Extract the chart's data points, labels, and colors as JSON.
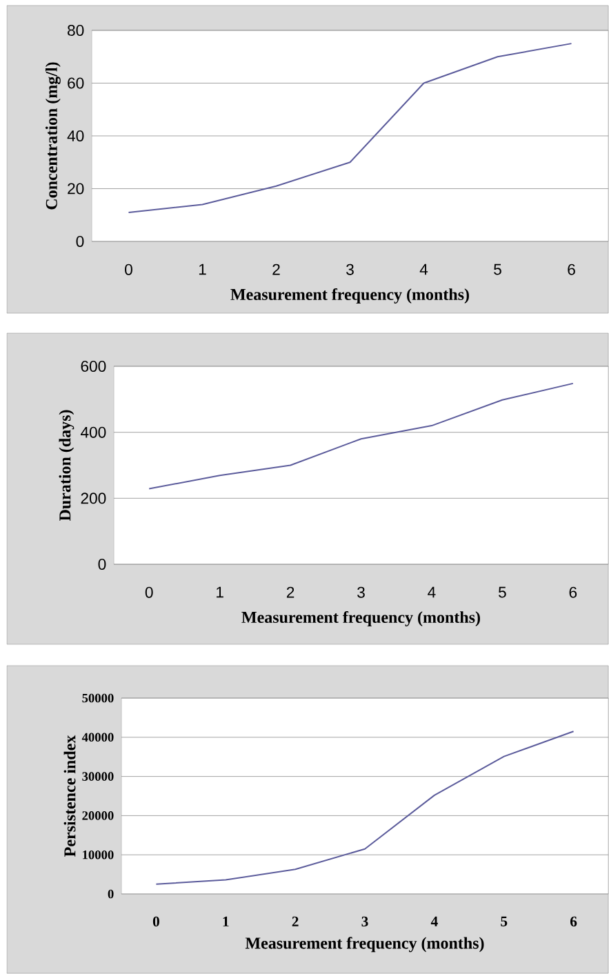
{
  "chart_data": [
    {
      "type": "line",
      "xlabel": "Measurement frequency (months)",
      "ylabel": "Concentration (mg/l)",
      "categories": [
        "0",
        "1",
        "2",
        "3",
        "4",
        "5",
        "6"
      ],
      "series": [
        {
          "color": "#5b5b9b",
          "values": [
            11,
            14,
            21,
            30,
            60,
            70,
            75
          ]
        }
      ],
      "ylim": [
        0,
        80
      ],
      "yticks": [
        0,
        20,
        40,
        60,
        80
      ],
      "grid": "y",
      "marker": "none",
      "line_style": "solid"
    },
    {
      "type": "line",
      "xlabel": "Measurement frequency (months)",
      "ylabel": "Duration (days)",
      "categories": [
        "0",
        "1",
        "2",
        "3",
        "4",
        "5",
        "6"
      ],
      "series": [
        {
          "color": "#5b5b9b",
          "values": [
            229,
            269,
            300,
            380,
            420,
            498,
            548
          ]
        }
      ],
      "ylim": [
        0,
        600
      ],
      "yticks": [
        0,
        200,
        400,
        600
      ],
      "grid": "y",
      "marker": "none",
      "line_style": "solid"
    },
    {
      "type": "line",
      "xlabel": "Measurement frequency (months)",
      "ylabel": "Persistence index",
      "categories": [
        "0",
        "1",
        "2",
        "3",
        "4",
        "5",
        "6"
      ],
      "series": [
        {
          "color": "#5b5b9b",
          "values": [
            2500,
            3600,
            6300,
            11500,
            25200,
            35100,
            41500
          ]
        }
      ],
      "ylim": [
        0,
        50000
      ],
      "yticks": [
        0,
        10000,
        20000,
        30000,
        40000,
        50000
      ],
      "grid": "y",
      "marker": "none",
      "line_style": "solid"
    }
  ]
}
